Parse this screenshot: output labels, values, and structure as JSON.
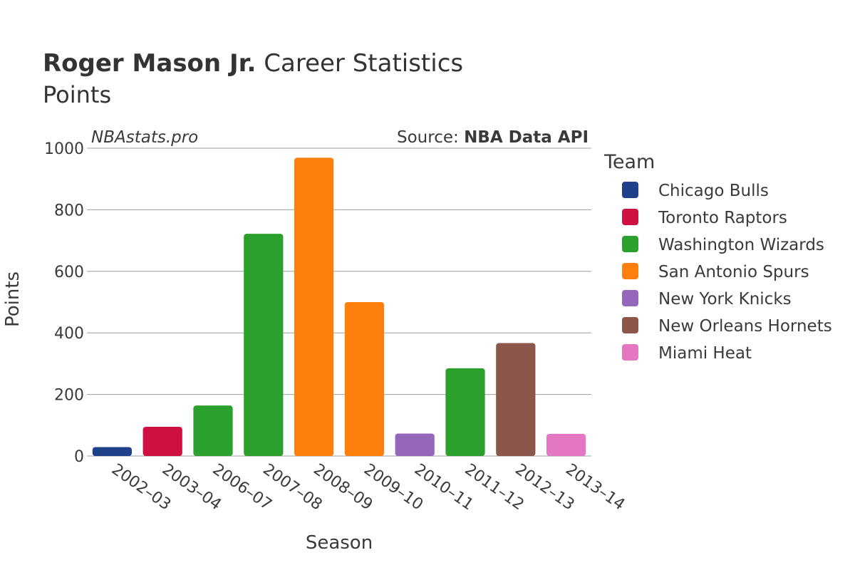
{
  "title": {
    "bold": "Roger Mason Jr.",
    "rest": " Career Statistics",
    "subtitle": "Points"
  },
  "watermark": "NBAstats.pro",
  "source": {
    "prefix": "Source: ",
    "name": "NBA Data API"
  },
  "legend": {
    "title": "Team"
  },
  "chart_data": {
    "type": "bar",
    "xlabel": "Season",
    "ylabel": "Points",
    "ylim": [
      0,
      1000
    ],
    "yticks": [
      0,
      200,
      400,
      600,
      800,
      1000
    ],
    "grid": true,
    "legend_position": "right",
    "categories": [
      "2002–03",
      "2003–04",
      "2006–07",
      "2007–08",
      "2008–09",
      "2009–10",
      "2010–11",
      "2011–12",
      "2012–13",
      "2013–14"
    ],
    "values": [
      29,
      95,
      164,
      722,
      969,
      500,
      73,
      285,
      367,
      72
    ],
    "bar_teams": [
      "Chicago Bulls",
      "Toronto Raptors",
      "Washington Wizards",
      "Washington Wizards",
      "San Antonio Spurs",
      "San Antonio Spurs",
      "New York Knicks",
      "Washington Wizards",
      "New Orleans Hornets",
      "Miami Heat"
    ],
    "teams": [
      {
        "name": "Chicago Bulls",
        "color": "#1d428a"
      },
      {
        "name": "Toronto Raptors",
        "color": "#ce1141"
      },
      {
        "name": "Washington Wizards",
        "color": "#2ca02c"
      },
      {
        "name": "San Antonio Spurs",
        "color": "#ff7f0e"
      },
      {
        "name": "New York Knicks",
        "color": "#9467bd"
      },
      {
        "name": "New Orleans Hornets",
        "color": "#8c564b"
      },
      {
        "name": "Miami Heat",
        "color": "#e377c2"
      }
    ]
  }
}
